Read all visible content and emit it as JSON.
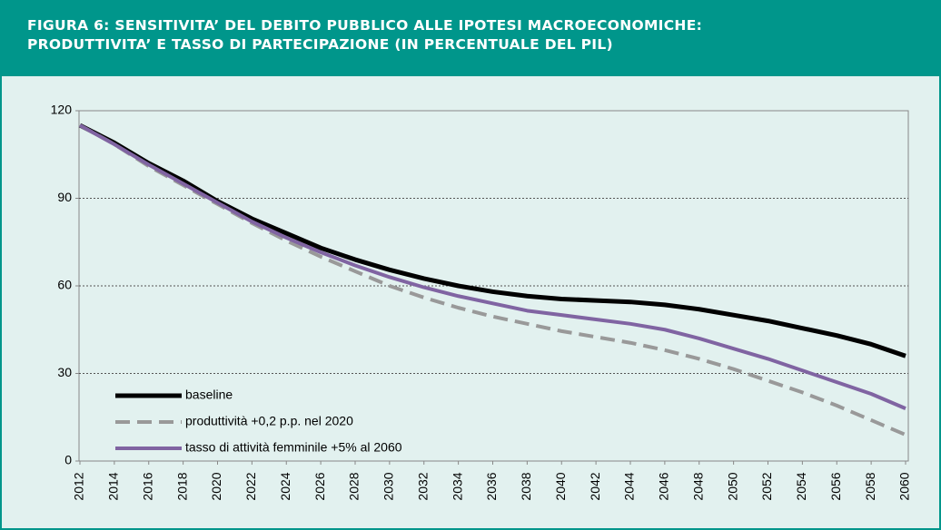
{
  "chart_data": {
    "type": "line",
    "title": "FIGURA 6: SENSITIVITA’ DEL DEBITO PUBBLICO ALLE IPOTESI MACROECONOMICHE:",
    "subtitle": "PRODUTTIVITA’ E TASSO DI PARTECIPAZIONE (IN PERCENTUALE DEL PIL)",
    "x": [
      2012,
      2014,
      2016,
      2018,
      2020,
      2022,
      2024,
      2026,
      2028,
      2030,
      2032,
      2034,
      2036,
      2038,
      2040,
      2042,
      2044,
      2046,
      2048,
      2050,
      2052,
      2054,
      2056,
      2058,
      2060
    ],
    "xlim": [
      2012,
      2060
    ],
    "xticks": [
      2012,
      2014,
      2016,
      2018,
      2020,
      2022,
      2024,
      2026,
      2028,
      2030,
      2032,
      2034,
      2036,
      2038,
      2040,
      2042,
      2044,
      2046,
      2048,
      2050,
      2052,
      2054,
      2056,
      2058,
      2060
    ],
    "ylim": [
      0,
      120
    ],
    "yticks": [
      0,
      30,
      60,
      90,
      120
    ],
    "grid": true,
    "legend": "lower left",
    "series": [
      {
        "name": "baseline",
        "color": "#000000",
        "dash": false,
        "values": [
          115,
          109,
          102,
          96,
          89,
          83,
          78,
          73,
          69,
          65.5,
          62.5,
          60,
          58,
          56.5,
          55.5,
          55,
          54.5,
          53.5,
          52,
          50,
          48,
          45.5,
          43,
          40,
          36
        ]
      },
      {
        "name": "produttività +0,2 p.p. nel 2020",
        "color": "#999999",
        "dash": true,
        "values": [
          115,
          108.5,
          101,
          94.5,
          88,
          81.5,
          75.5,
          70,
          65,
          60,
          56,
          52.5,
          49.5,
          47,
          44.5,
          42.5,
          40.5,
          38,
          35,
          31.5,
          27.5,
          23.5,
          19,
          14,
          9
        ]
      },
      {
        "name": "tasso di attività femminile +5% al 2060",
        "color": "#8064a2",
        "dash": false,
        "values": [
          115,
          108.5,
          101.5,
          95,
          88.5,
          82,
          76.5,
          71.5,
          67,
          63,
          59.5,
          56.5,
          54,
          51.5,
          50,
          48.5,
          47,
          45,
          42,
          38.5,
          35,
          31,
          27,
          23,
          18
        ]
      }
    ]
  }
}
